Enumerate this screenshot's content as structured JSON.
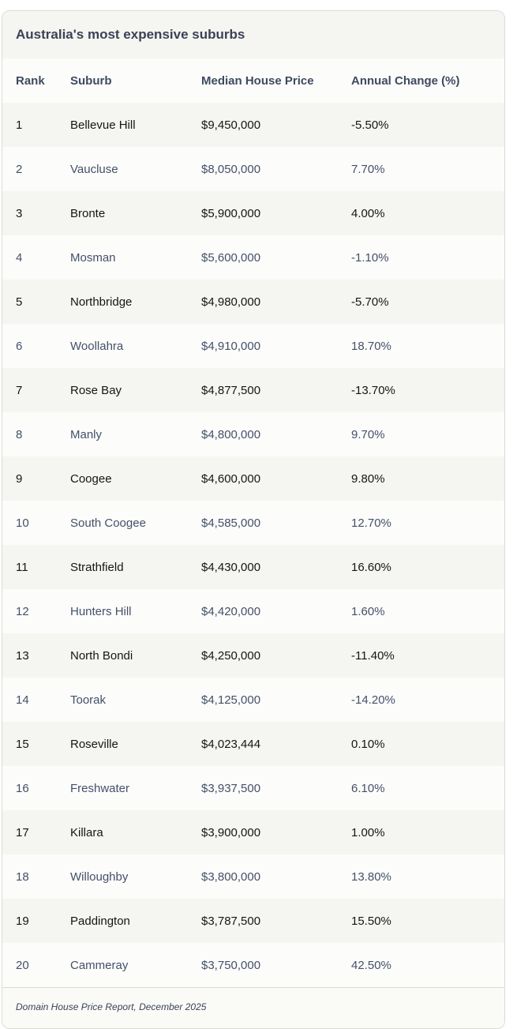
{
  "title": "Australia's most expensive suburbs",
  "columns": [
    "Rank",
    "Suburb",
    "Median House Price",
    "Annual Change (%)"
  ],
  "rows": [
    [
      "1",
      "Bellevue Hill",
      "$9,450,000",
      "-5.50%"
    ],
    [
      "2",
      "Vaucluse",
      "$8,050,000",
      "7.70%"
    ],
    [
      "3",
      "Bronte",
      "$5,900,000",
      "4.00%"
    ],
    [
      "4",
      "Mosman",
      "$5,600,000",
      "-1.10%"
    ],
    [
      "5",
      "Northbridge",
      "$4,980,000",
      "-5.70%"
    ],
    [
      "6",
      "Woollahra",
      "$4,910,000",
      "18.70%"
    ],
    [
      "7",
      "Rose Bay",
      "$4,877,500",
      "-13.70%"
    ],
    [
      "8",
      "Manly",
      "$4,800,000",
      "9.70%"
    ],
    [
      "9",
      "Coogee",
      "$4,600,000",
      "9.80%"
    ],
    [
      "10",
      "South Coogee",
      "$4,585,000",
      "12.70%"
    ],
    [
      "11",
      "Strathfield",
      "$4,430,000",
      "16.60%"
    ],
    [
      "12",
      "Hunters Hill",
      "$4,420,000",
      "1.60%"
    ],
    [
      "13",
      "North Bondi",
      "$4,250,000",
      "-11.40%"
    ],
    [
      "14",
      "Toorak",
      "$4,125,000",
      "-14.20%"
    ],
    [
      "15",
      "Roseville",
      "$4,023,444",
      "0.10%"
    ],
    [
      "16",
      "Freshwater",
      "$3,937,500",
      "6.10%"
    ],
    [
      "17",
      "Killara",
      "$3,900,000",
      "1.00%"
    ],
    [
      "18",
      "Willoughby",
      "$3,800,000",
      "13.80%"
    ],
    [
      "19",
      "Paddington",
      "$3,787,500",
      "15.50%"
    ],
    [
      "20",
      "Cammeray",
      "$3,750,000",
      "42.50%"
    ]
  ],
  "source": "Domain House Price Report, December 2025"
}
